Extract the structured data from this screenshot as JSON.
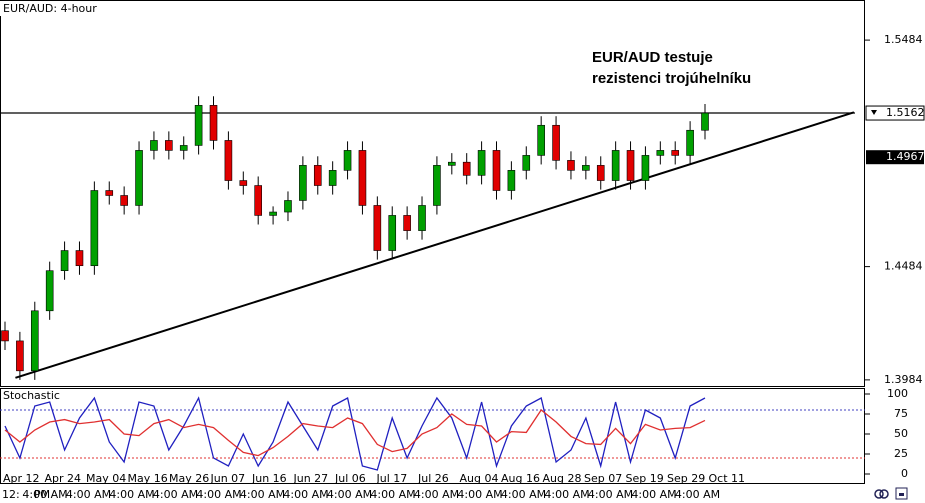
{
  "chart_data": [
    {
      "type": "candlestick",
      "title": "EUR/AUD: 4-hour",
      "annotation": [
        "EUR/AUD testuje",
        "rezistenci trojúhelníku"
      ],
      "open": [
        1.4201,
        1.4156,
        1.4024,
        1.4289,
        1.4466,
        1.4555,
        1.4488,
        1.482,
        1.4798,
        1.4754,
        1.4997,
        1.5041,
        1.4997,
        1.5019,
        1.5196,
        1.5041,
        1.4864,
        1.4842,
        1.471,
        1.4725,
        1.4776,
        1.4931,
        1.4842,
        1.4909,
        1.4997,
        1.4754,
        1.4555,
        1.471,
        1.4643,
        1.4754,
        1.4931,
        1.4945,
        1.4887,
        1.4997,
        1.482,
        1.4909,
        1.4975,
        1.5108,
        1.4953,
        1.4909,
        1.4931,
        1.4864,
        1.4997,
        1.4864,
        1.4975,
        1.4997,
        1.4975,
        1.5086
      ],
      "high": [
        1.4241,
        1.4196,
        1.4329,
        1.4506,
        1.4595,
        1.4595,
        1.486,
        1.486,
        1.4838,
        1.5037,
        1.5081,
        1.5081,
        1.5059,
        1.5236,
        1.5236,
        1.5081,
        1.4904,
        1.4882,
        1.475,
        1.4816,
        1.4971,
        1.4971,
        1.4949,
        1.5037,
        1.5037,
        1.4794,
        1.475,
        1.475,
        1.4794,
        1.4971,
        1.4985,
        1.4985,
        1.5037,
        1.5037,
        1.4949,
        1.5015,
        1.5148,
        1.5148,
        1.4993,
        1.4971,
        1.4971,
        1.5037,
        1.5037,
        1.5015,
        1.5037,
        1.5037,
        1.5126,
        1.5202
      ],
      "low": [
        1.4116,
        1.3984,
        1.3984,
        1.4249,
        1.4426,
        1.4448,
        1.4448,
        1.4758,
        1.4714,
        1.4714,
        1.4957,
        1.4957,
        1.4957,
        1.4979,
        1.5001,
        1.4824,
        1.4802,
        1.467,
        1.467,
        1.4685,
        1.4736,
        1.4802,
        1.4802,
        1.4869,
        1.4714,
        1.4515,
        1.4515,
        1.4603,
        1.4603,
        1.4714,
        1.4891,
        1.4847,
        1.4847,
        1.478,
        1.478,
        1.4869,
        1.4935,
        1.4913,
        1.4869,
        1.4869,
        1.4824,
        1.4824,
        1.4824,
        1.4824,
        1.4935,
        1.4935,
        1.4935,
        1.5046
      ],
      "close": [
        1.4156,
        1.4024,
        1.4289,
        1.4466,
        1.4555,
        1.4488,
        1.482,
        1.4798,
        1.4754,
        1.4997,
        1.5041,
        1.4997,
        1.5019,
        1.5196,
        1.5041,
        1.4864,
        1.4842,
        1.471,
        1.4725,
        1.4776,
        1.4931,
        1.4842,
        1.4909,
        1.4997,
        1.4754,
        1.4555,
        1.471,
        1.4643,
        1.4754,
        1.4931,
        1.4945,
        1.4887,
        1.4997,
        1.482,
        1.4909,
        1.4975,
        1.5108,
        1.4953,
        1.4909,
        1.4931,
        1.4864,
        1.4997,
        1.4864,
        1.4975,
        1.4997,
        1.4975,
        1.5086,
        1.5162
      ],
      "up_color": "#00a000",
      "down_color": "#e00000",
      "ylim": [
        1.3957,
        1.5661
      ],
      "yticks": [
        1.5484,
        1.4484,
        1.3984
      ],
      "resistance": 1.5162,
      "price_marker": 1.4967,
      "trendline": {
        "x": [
          0.7,
          57
        ],
        "y": [
          1.3993,
          1.5165
        ]
      },
      "dates": [
        "Apr 12",
        "Apr 24",
        "May 04",
        "May 16",
        "May 26",
        "Jun 07",
        "Jun 16",
        "Jun 27",
        "Jul 06",
        "Jul 17",
        "Jul 26",
        "Aug 04",
        "Aug 16",
        "Aug 28",
        "Sep 07",
        "Sep 19",
        "Sep 29",
        "Oct 11"
      ],
      "times": [
        "12:",
        "PM",
        "4:00 AM",
        "4:00 AM",
        "4:00 AM",
        "4:00 AM",
        "4:00 AM",
        "4:00 AM",
        "4:00 AM",
        "4:00 AM",
        "4:00 AM",
        "4:00 AM",
        "4:00 AM",
        "4:00 AM",
        "4:00 AM",
        "4:00 AM",
        "4:00 AM",
        "4:00 AM"
      ]
    },
    {
      "type": "line",
      "title": "Stochastic",
      "series": [
        {
          "color": "#2020c0",
          "values": [
            60,
            20,
            85,
            90,
            30,
            70,
            95,
            40,
            15,
            90,
            85,
            30,
            60,
            95,
            20,
            10,
            50,
            10,
            40,
            90,
            60,
            30,
            85,
            95,
            10,
            5,
            70,
            20,
            60,
            95,
            70,
            20,
            90,
            10,
            60,
            85,
            95,
            15,
            30,
            70,
            10,
            90,
            15,
            80,
            70,
            20,
            85,
            95
          ]
        },
        {
          "color": "#e03030",
          "values": [
            55,
            40,
            55,
            65,
            68,
            63,
            65,
            68,
            50,
            48,
            63,
            68,
            58,
            62,
            58,
            42,
            27,
            23,
            33,
            47,
            63,
            60,
            58,
            70,
            63,
            37,
            28,
            32,
            50,
            58,
            75,
            62,
            60,
            40,
            53,
            52,
            80,
            65,
            47,
            38,
            37,
            57,
            38,
            62,
            55,
            57,
            58,
            67
          ]
        }
      ],
      "levels": [
        {
          "value": 80,
          "color": "#4040c0"
        },
        {
          "value": 20,
          "color": "#e03030"
        }
      ],
      "ylim": [
        -12.5,
        107.5
      ],
      "yticks": [
        100,
        75,
        50,
        25,
        0
      ]
    }
  ]
}
